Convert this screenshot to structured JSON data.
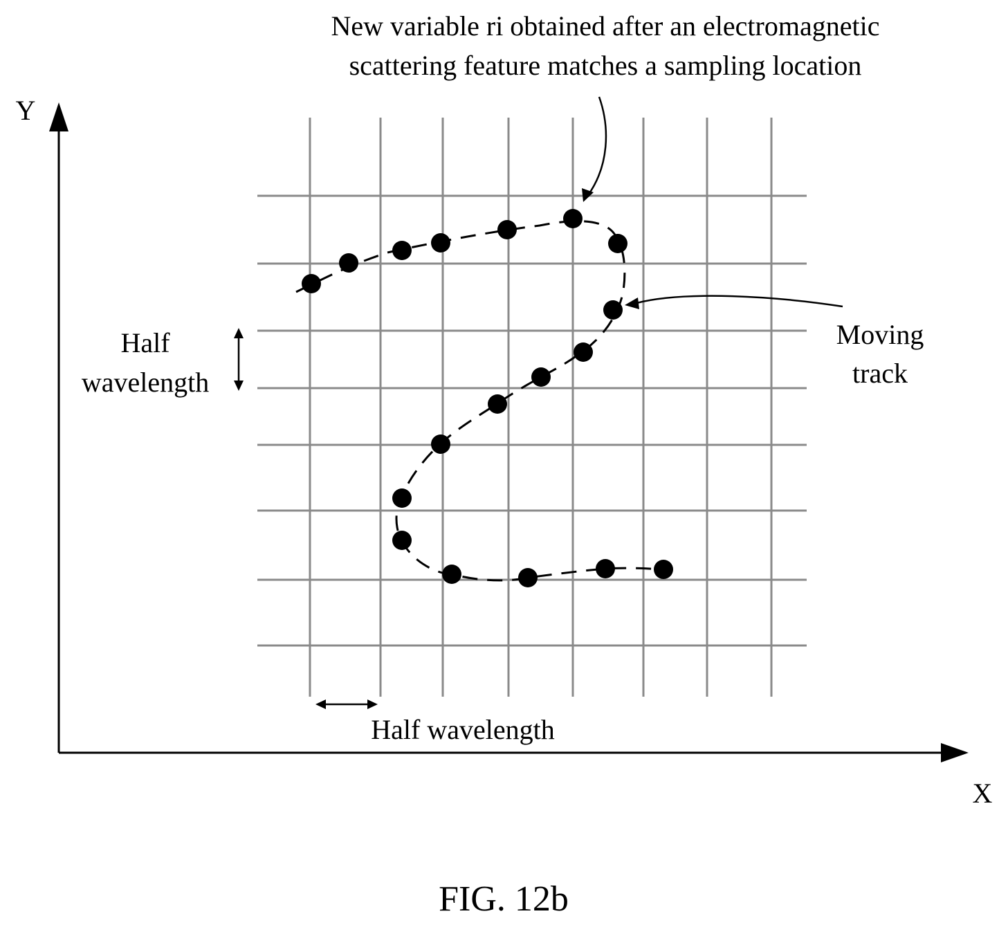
{
  "annotation_top": {
    "line1": "New variable ri obtained after an electromagnetic",
    "line2": "scattering feature matches a sampling location"
  },
  "axis": {
    "y_label": "Y",
    "x_label": "X"
  },
  "half_wavelength_vertical": {
    "line1": "Half",
    "line2": "wavelength"
  },
  "half_wavelength_horizontal": "Half wavelength",
  "moving_track": {
    "line1": "Moving",
    "line2": "track"
  },
  "caption": "FIG. 12b",
  "colors": {
    "ink": "#000000",
    "grid": "#8a8a8a",
    "background": "#ffffff"
  }
}
